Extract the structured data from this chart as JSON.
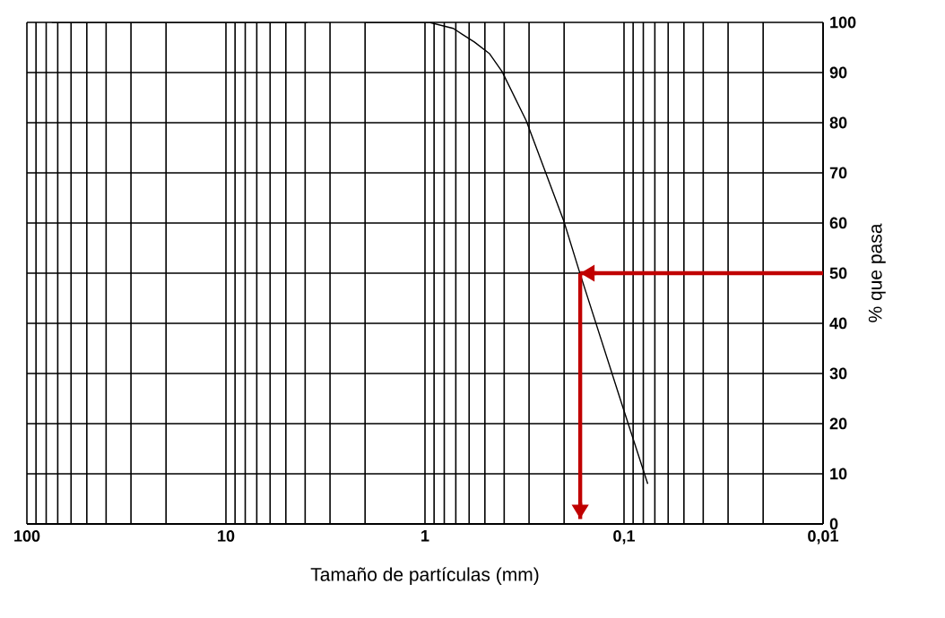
{
  "chart_data": {
    "type": "line",
    "xlabel": "Tamaño de partículas (mm)",
    "ylabel": "% que pasa",
    "log": "x",
    "grid": true,
    "marker": "none",
    "line_style": "solid",
    "xlim": [
      100,
      0.01
    ],
    "xticks": [
      100,
      10,
      {
        "value": 1,
        "label": "1"
      },
      {
        "value": 0.1,
        "label": "0,1"
      },
      {
        "value": 0.01,
        "label": "0,01"
      }
    ],
    "ylim": [
      0,
      100
    ],
    "yticks": [
      0,
      10,
      20,
      30,
      40,
      50,
      60,
      70,
      80,
      90,
      100
    ],
    "series": [
      {
        "color": "#000000",
        "x": [
          75,
          3.9,
          null,
          2.0,
          0.95,
          0.72,
          0.649,
          0.565,
          0.475,
          0.41,
          0.31,
          0.2,
          0.166,
          0.102,
          0.076
        ],
        "values": [
          100,
          100,
          null,
          100,
          100,
          98.8,
          97.6,
          96.1,
          93.8,
          90.2,
          80.4,
          60.2,
          49.8,
          23.6,
          8
        ]
      },
      {
        "color": "#c00000",
        "x": [
          0.01,
          0.166
        ],
        "values": [
          50,
          50
        ]
      },
      {
        "color": "#c00000",
        "x": [
          0.166,
          0.166
        ],
        "values": [
          50,
          1
        ]
      }
    ]
  }
}
